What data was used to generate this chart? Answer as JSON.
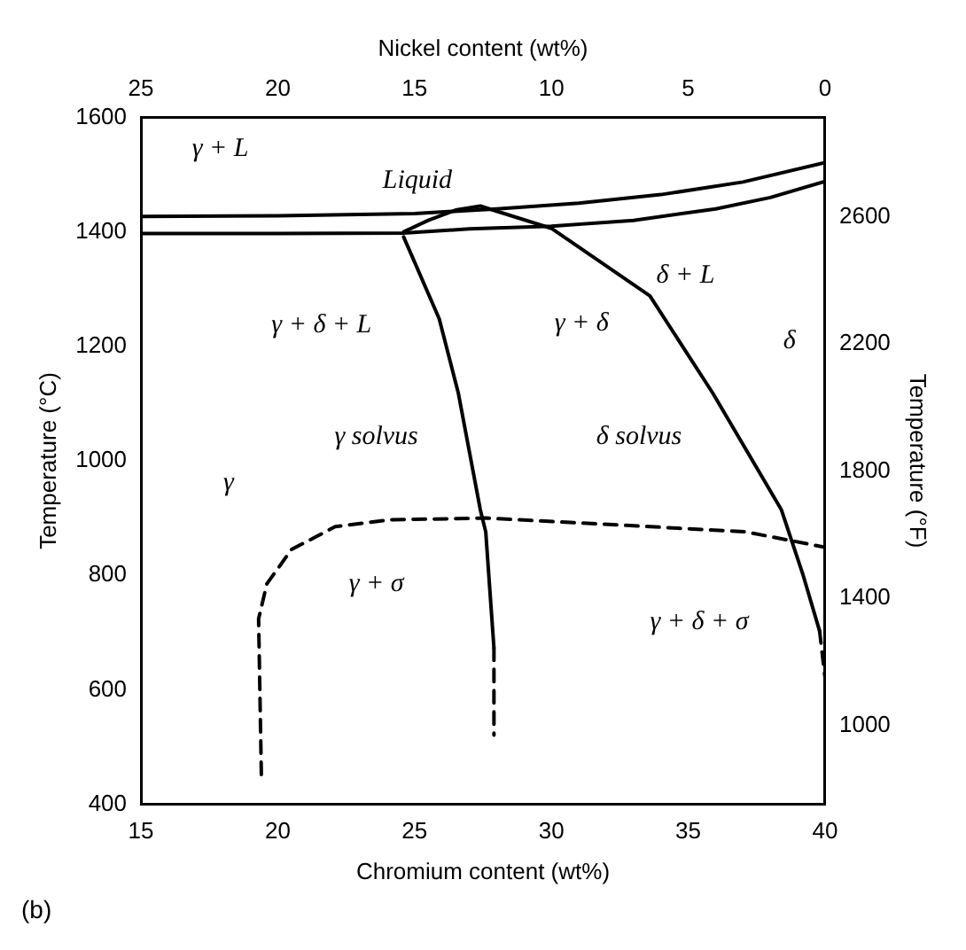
{
  "chart_data": {
    "type": "line",
    "xlabel": "Chromium content (wt%)",
    "x2label": "Nickel content (wt%)",
    "ylabel": "Temperature (°C)",
    "y2label": "Temperature (°F)",
    "xlim": [
      15,
      40
    ],
    "xticks": [
      15,
      20,
      25,
      30,
      35,
      40
    ],
    "x2lim": [
      25,
      0
    ],
    "x2ticks": [
      25,
      20,
      15,
      10,
      5,
      0
    ],
    "ylim": [
      400,
      1600
    ],
    "yticks": [
      400,
      600,
      800,
      1000,
      1200,
      1400,
      1600
    ],
    "y2lim": [
      752,
      2912
    ],
    "y2ticks": [
      1000,
      1400,
      1800,
      2200,
      2600
    ],
    "grid": false,
    "legend": false,
    "marker": "none",
    "series": [
      {
        "color": "#000000",
        "line_style": "solid",
        "x": [
          15,
          20,
          25,
          28,
          31,
          34,
          37,
          40
        ],
        "values": [
          1427,
          1428,
          1432,
          1440,
          1450,
          1465,
          1487,
          1521
        ]
      },
      {
        "color": "#000000",
        "line_style": "solid",
        "x": [
          15,
          20,
          24.6,
          27,
          30,
          33,
          36,
          38,
          40
        ],
        "values": [
          1397,
          1397,
          1398,
          1405,
          1410,
          1420,
          1440,
          1460,
          1488
        ]
      },
      {
        "color": "#000000",
        "line_style": "solid",
        "x": [
          24.6,
          25.5,
          26.5,
          27.4,
          30,
          33.6,
          35.9,
          38.4,
          39.2,
          39.8
        ],
        "values": [
          1400,
          1420,
          1438,
          1445,
          1406,
          1288,
          1118,
          915,
          800,
          703
        ]
      },
      {
        "color": "#000000",
        "line_style": "dashed",
        "x": [
          39.8,
          40
        ],
        "values": [
          703,
          621
        ]
      },
      {
        "color": "#000000",
        "line_style": "solid",
        "x": [
          24.6,
          25.9,
          26.6,
          27.4,
          27.6,
          27.9
        ],
        "values": [
          1391,
          1248,
          1118,
          915,
          876,
          673
        ]
      },
      {
        "color": "#000000",
        "line_style": "dashed",
        "x": [
          27.9,
          27.9
        ],
        "values": [
          673,
          521
        ]
      },
      {
        "color": "#000000",
        "line_style": "dashed",
        "x": [
          19.4,
          19.3,
          19.6,
          20.5,
          22.1,
          24.1,
          27.6,
          33.6,
          37.1,
          40
        ],
        "values": [
          452,
          724,
          785,
          845,
          885,
          897,
          900,
          885,
          876,
          849
        ]
      }
    ],
    "annotations": [
      "γ + L",
      "Liquid",
      "δ + L",
      "γ + δ + L",
      "γ + δ",
      "δ",
      "γ solvus",
      "δ solvus",
      "γ",
      "γ + σ",
      "γ + δ + σ",
      "(b)"
    ]
  }
}
